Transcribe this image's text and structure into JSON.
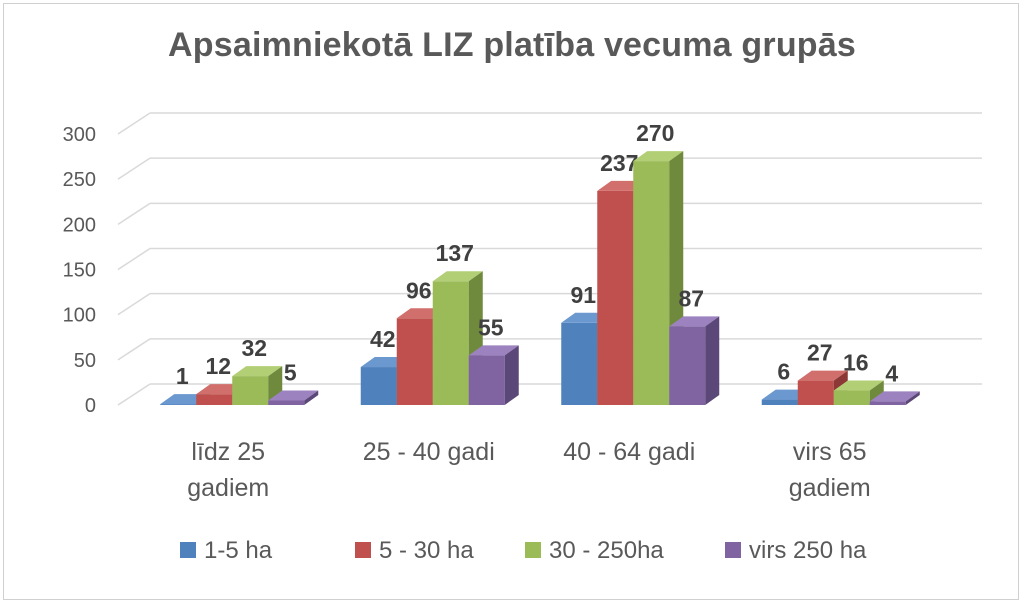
{
  "chart_data": {
    "type": "bar",
    "title": "Apsaimniekotā LIZ platība vecuma grupās",
    "xlabel": "",
    "ylabel": "",
    "ylim": [
      0,
      300
    ],
    "yticks": [
      "0",
      "50",
      "100",
      "150",
      "200",
      "250",
      "300"
    ],
    "categories": [
      [
        "līdz 25",
        "gadiem"
      ],
      [
        "25 - 40 gadi"
      ],
      [
        "40 - 64 gadi"
      ],
      [
        "virs 65",
        "gadiem"
      ]
    ],
    "grid": true,
    "legend_position": "bottom",
    "series": [
      {
        "name": "1-5 ha",
        "values": [
          1,
          42,
          91,
          6
        ],
        "color": "#4f81bd",
        "side": "#385d8a",
        "top": "#6a98cf"
      },
      {
        "name": "5 - 30 ha",
        "values": [
          12,
          96,
          237,
          27
        ],
        "color": "#c0504d",
        "side": "#8c3836",
        "top": "#d06f6c"
      },
      {
        "name": "30 - 250ha",
        "values": [
          32,
          137,
          270,
          16
        ],
        "color": "#9bbb59",
        "side": "#6f8a3c",
        "top": "#b2cf76"
      },
      {
        "name": "virs 250 ha",
        "values": [
          5,
          55,
          87,
          4
        ],
        "color": "#8064a2",
        "side": "#5c4878",
        "top": "#9c82bf"
      }
    ]
  }
}
